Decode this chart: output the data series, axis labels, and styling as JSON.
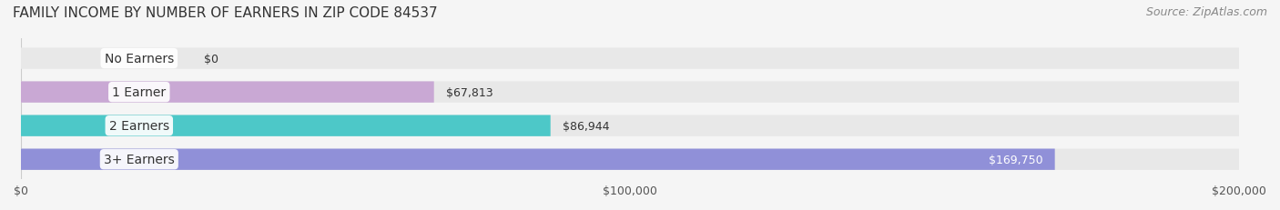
{
  "title": "FAMILY INCOME BY NUMBER OF EARNERS IN ZIP CODE 84537",
  "source": "Source: ZipAtlas.com",
  "categories": [
    "No Earners",
    "1 Earner",
    "2 Earners",
    "3+ Earners"
  ],
  "values": [
    0,
    67813,
    86944,
    169750
  ],
  "bar_colors": [
    "#a8bfde",
    "#c9a8d4",
    "#4dc8c8",
    "#9090d8"
  ],
  "label_colors": [
    "#333333",
    "#333333",
    "#333333",
    "#ffffff"
  ],
  "value_labels": [
    "$0",
    "$67,813",
    "$86,944",
    "$169,750"
  ],
  "xlim": [
    0,
    200000
  ],
  "xticks": [
    0,
    100000,
    200000
  ],
  "xticklabels": [
    "$0",
    "$100,000",
    "$200,000"
  ],
  "background_color": "#f5f5f5",
  "bar_background": "#e8e8e8",
  "title_fontsize": 11,
  "source_fontsize": 9,
  "label_fontsize": 10,
  "value_fontsize": 9,
  "tick_fontsize": 9
}
